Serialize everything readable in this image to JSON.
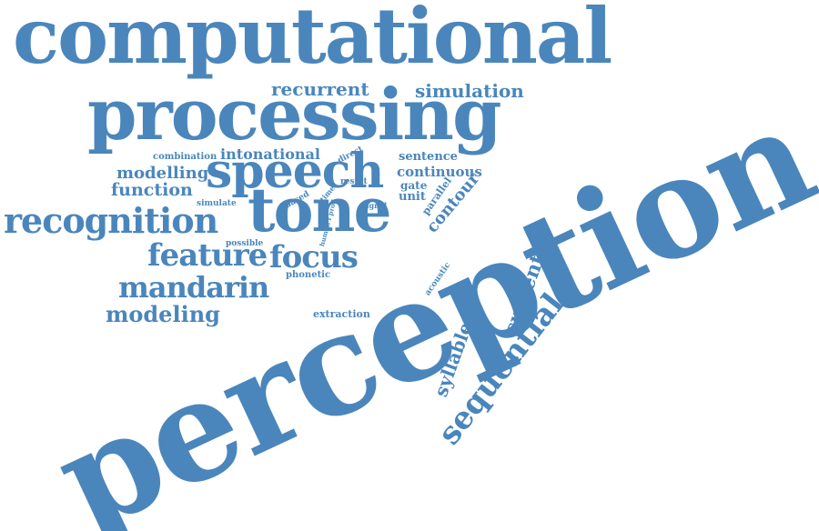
{
  "cloud": {
    "color": "#4a86bc",
    "words": {
      "computational": "computational",
      "processing": "processing",
      "perception": "perception",
      "recurrent": "recurrent",
      "simulation": "simulation",
      "speech": "speech",
      "tone": "tone",
      "recognition": "recognition",
      "feature": "feature",
      "focus": "focus",
      "mandarin": "mandarin",
      "modeling": "modeling",
      "modelling": "modelling",
      "function": "function",
      "combination": "combination",
      "intonational": "intonational",
      "sentence": "sentence",
      "continuous": "continuous",
      "gate": "gate",
      "unit": "unit",
      "contour": "contour",
      "parallel": "parallel",
      "direct": "direct",
      "result": "result",
      "signal": "signal",
      "based": "based",
      "simulate": "simulate",
      "time": "time",
      "human_f_prod": "human f prod",
      "possible": "possible",
      "phonetic": "phonetic",
      "acoustic": "acoustic",
      "extraction": "extraction",
      "syllable": "syllable",
      "sequential": "sequential",
      "current": "current"
    }
  }
}
